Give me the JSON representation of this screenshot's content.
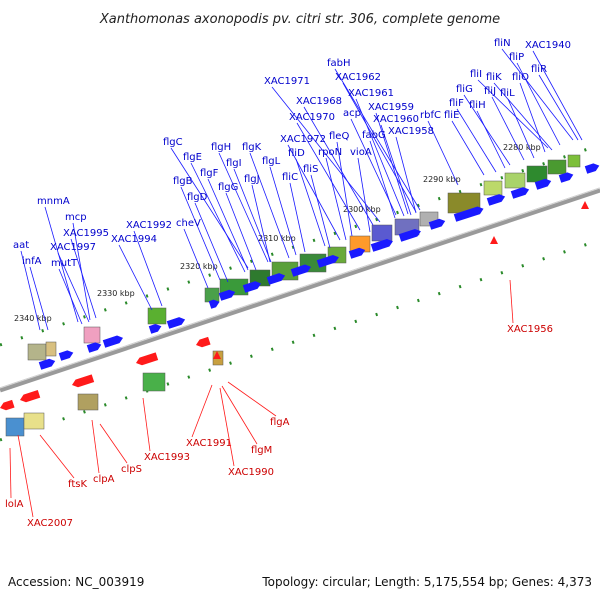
{
  "title": "Xanthomonas axonopodis pv. citri str. 306, complete genome",
  "footer": {
    "accession": "Accession: NC_003919",
    "summary": "Topology: circular; Length: 5,175,554 bp; Genes: 4,373"
  },
  "colors": {
    "forward_gene": "#1a1aff",
    "reverse_gene": "#ff1a1a",
    "backbone": "#7a7a7a",
    "tick": "#2a8a2a",
    "label_forward": "#0000cc",
    "label_reverse": "#cc0000"
  },
  "kbp_labels": [
    "2280 kbp",
    "2290 kbp",
    "2300 kbp",
    "2310 kbp",
    "2320 kbp",
    "2330 kbp",
    "2340 kbp"
  ],
  "top_labels": [
    "fliN",
    "XAC1940",
    "fliP",
    "fliR",
    "fliI",
    "fliK",
    "fliO",
    "fliG",
    "fliJ",
    "fliL",
    "fliF",
    "fliH",
    "fliE",
    "rbfC",
    "fabH",
    "XAC1962",
    "XAC1971",
    "acp",
    "XAC1961",
    "XAC1968",
    "XAC1959",
    "XAC1970",
    "XAC1960",
    "fabG",
    "XAC1958",
    "XAC1972",
    "fleQ",
    "fliD",
    "rpoN",
    "vioA",
    "fliS",
    "fliC",
    "flgC",
    "flgH",
    "flgK",
    "flgE",
    "flgI",
    "flgF",
    "flgL",
    "flgB",
    "flgG",
    "flgJ",
    "flgD",
    "cheV",
    "XAC1992",
    "XAC1994",
    "mnmA",
    "mcp",
    "XAC1995",
    "aat",
    "XAC1997",
    "infA",
    "mutT"
  ],
  "bottom_labels": [
    "XAC1956",
    "flgA",
    "XAC1991",
    "flgM",
    "XAC1990",
    "XAC1993",
    "clpS",
    "clpA",
    "ftsK",
    "lolA",
    "XAC2007"
  ]
}
